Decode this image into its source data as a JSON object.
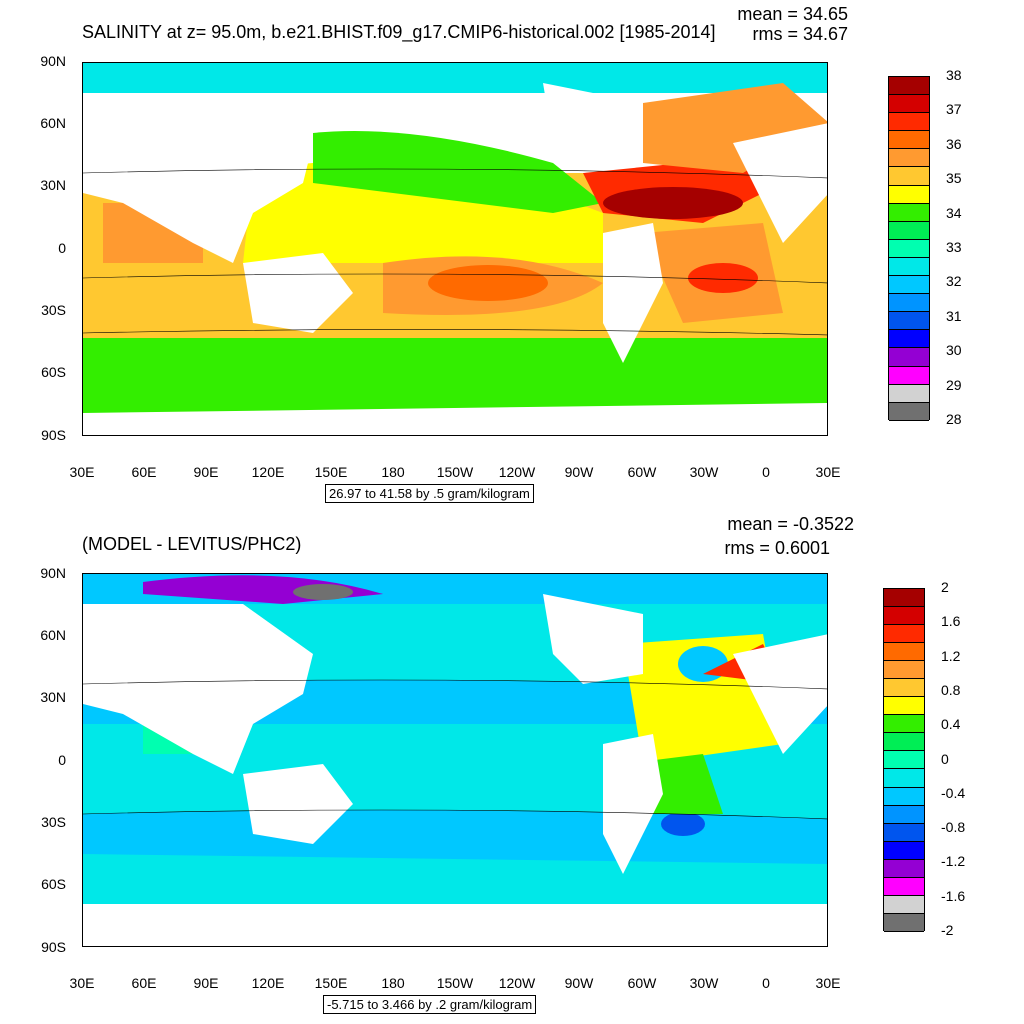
{
  "panel1": {
    "title": "SALINITY at z=  95.0m, b.e21.BHIST.f09_g17.CMIP6-historical.002 [1985-2014]",
    "mean": "mean = 34.65",
    "rms": "rms = 34.67",
    "range_note": "26.97 to 41.58 by .5 gram/kilogram",
    "colorbar": {
      "labels": [
        "38",
        "37",
        "36",
        "35",
        "34",
        "33",
        "32",
        "31",
        "30",
        "29",
        "28"
      ],
      "colors": [
        "#a50000",
        "#d40000",
        "#ff2a00",
        "#ff6a00",
        "#ff9a30",
        "#ffc830",
        "#ffff00",
        "#33ee00",
        "#00ee55",
        "#00ffb0",
        "#00e8e8",
        "#00c8ff",
        "#0094ff",
        "#0055ee",
        "#0000ff",
        "#9400d3",
        "#ff00ff",
        "#d2d2d2",
        "#707070"
      ]
    }
  },
  "panel2": {
    "title": "(MODEL - LEVITUS/PHC2)",
    "mean": "mean = -0.3522",
    "rms": "rms = 0.6001",
    "range_note": "-5.715 to 3.466 by .2 gram/kilogram",
    "colorbar": {
      "labels": [
        "2",
        "1.6",
        "1.2",
        "0.8",
        "0.4",
        "0",
        "-0.4",
        "-0.8",
        "-1.2",
        "-1.6",
        "-2"
      ],
      "colors": [
        "#a50000",
        "#d40000",
        "#ff2a00",
        "#ff6a00",
        "#ff9a30",
        "#ffc830",
        "#ffff00",
        "#33ee00",
        "#00ee55",
        "#00ffb0",
        "#00e8e8",
        "#00c8ff",
        "#0094ff",
        "#0055ee",
        "#0000ff",
        "#9400d3",
        "#ff00ff",
        "#d2d2d2",
        "#707070"
      ]
    }
  },
  "axes": {
    "lat_labels": [
      "90N",
      "60N",
      "30N",
      "0",
      "30S",
      "60S",
      "90S"
    ],
    "lon_labels": [
      "30E",
      "60E",
      "90E",
      "120E",
      "150E",
      "180",
      "150W",
      "120W",
      "90W",
      "60W",
      "30W",
      "0",
      "30E"
    ]
  },
  "colors": {
    "land": "#ffffff",
    "ocean_base": "#00e8e8",
    "high_salinity": "#a50000",
    "low_salinity": "#0000ff"
  }
}
